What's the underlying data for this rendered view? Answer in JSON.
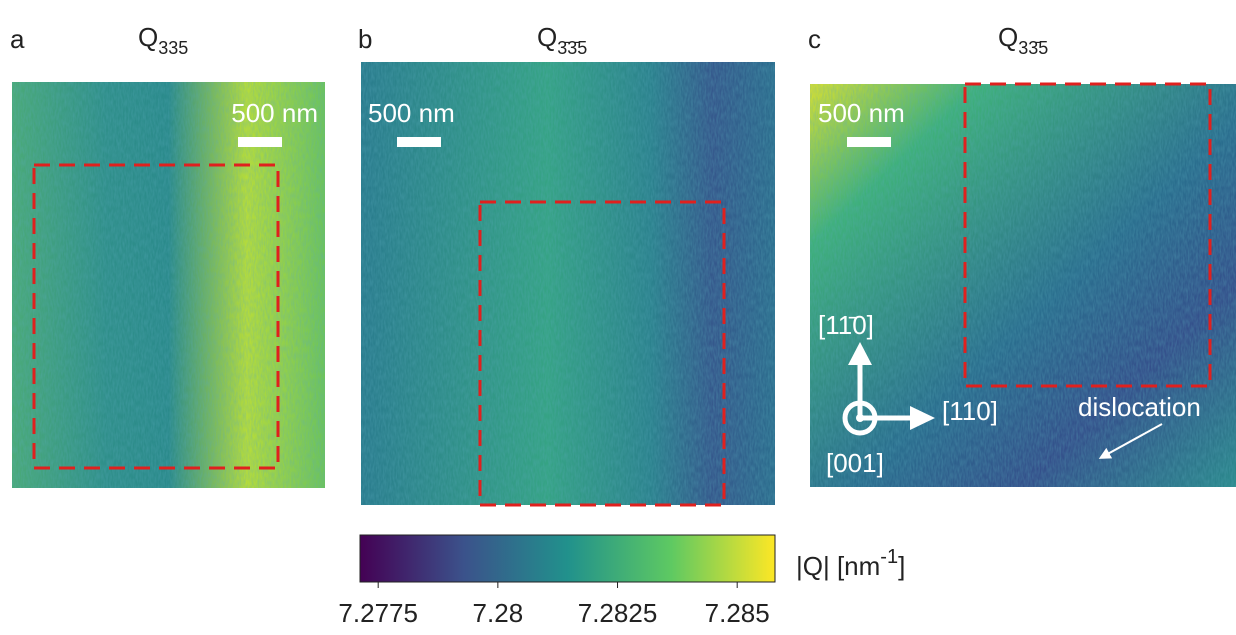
{
  "panels": [
    {
      "label": "a",
      "title": {
        "main": "Q",
        "sub": "335"
      },
      "scale_bar": "500 nm"
    },
    {
      "label": "b",
      "title": {
        "main": "Q",
        "sub": "3̄3̄5"
      },
      "scale_bar": "500 nm"
    },
    {
      "label": "c",
      "title": {
        "main": "Q",
        "sub": "33̄5"
      },
      "scale_bar": "500 nm",
      "axes": {
        "up": "[11̄0]",
        "right": "[110]",
        "out": "[001]"
      },
      "annotation": "dislocation"
    }
  ],
  "colorbar": {
    "label": {
      "text": "|Q| [nm",
      "sup": "-1",
      "close": "]"
    },
    "lim": [
      7.27712,
      7.28579
    ],
    "ticks": [
      7.2775,
      7.28,
      7.2825,
      7.285
    ]
  }
}
